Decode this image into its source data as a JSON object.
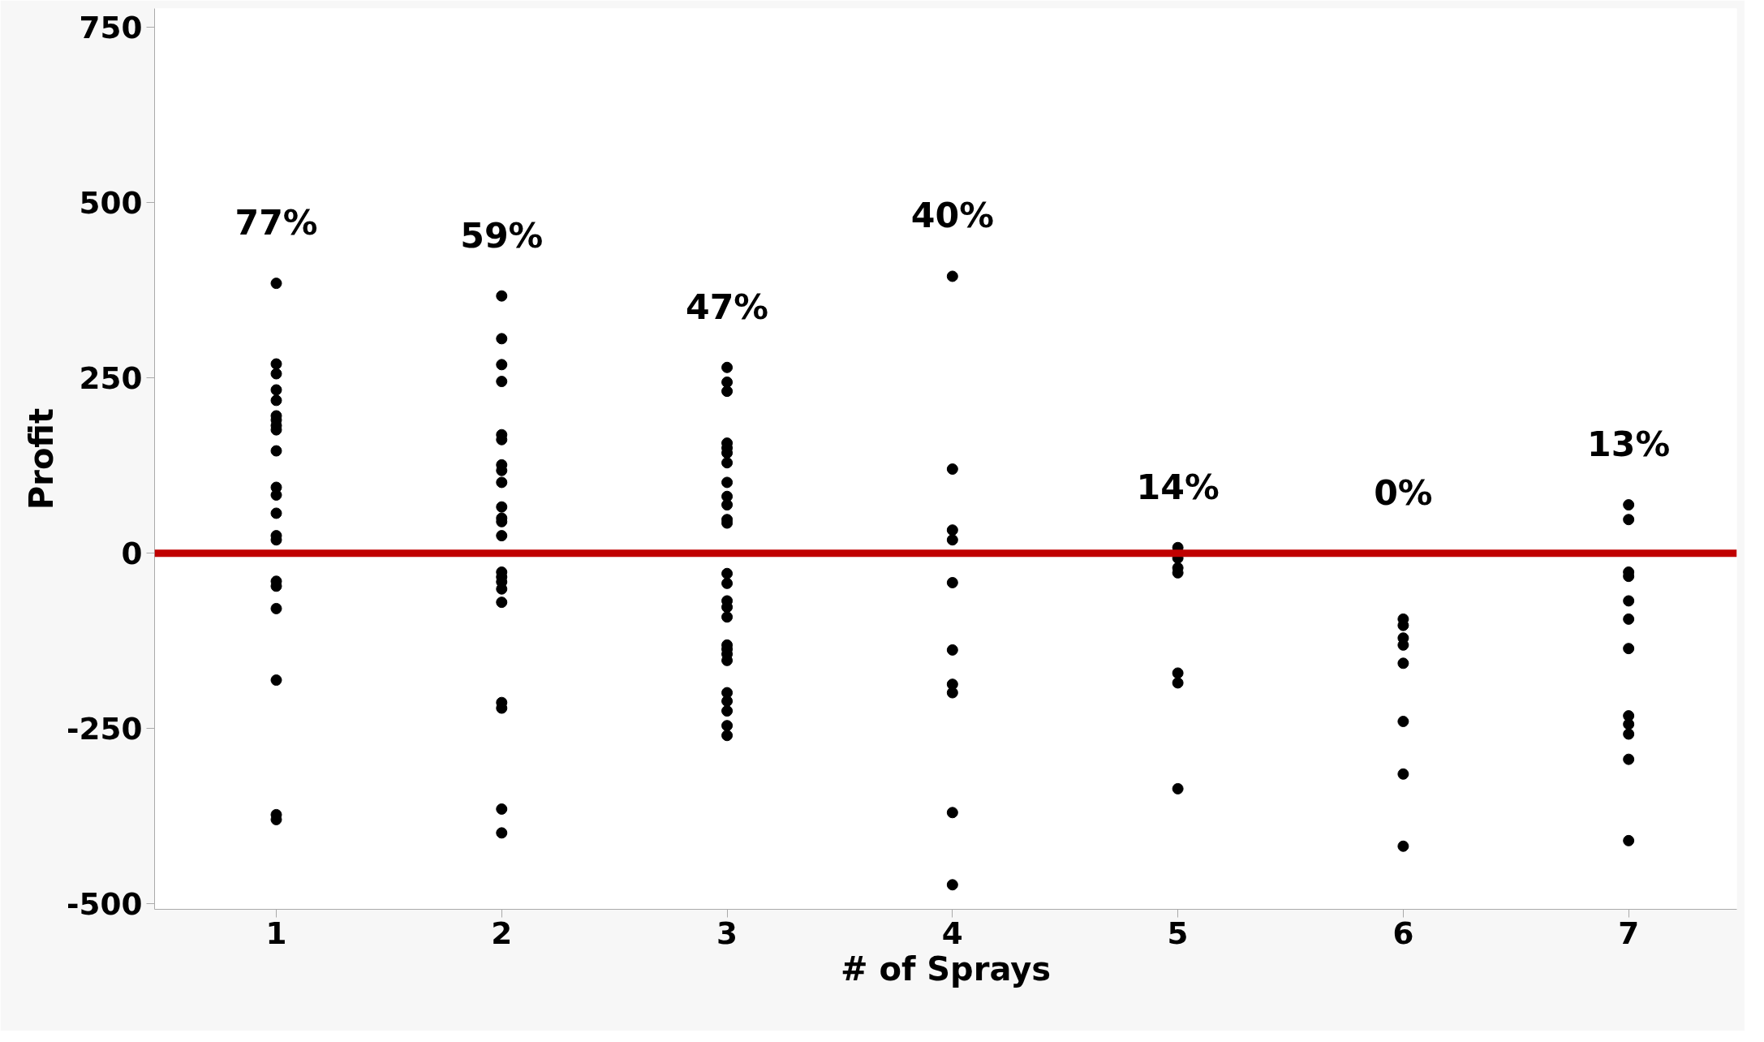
{
  "chart_data": {
    "type": "scatter",
    "xlabel": "# of Sprays",
    "ylabel": "Profit",
    "xlim": [
      0.46,
      7.48
    ],
    "xticks": [
      1,
      2,
      3,
      4,
      5,
      6,
      7
    ],
    "ylim": [
      -508,
      777
    ],
    "yticks": [
      {
        "value": -500,
        "label": "-500"
      },
      {
        "value": -250,
        "label": "-250"
      },
      0,
      250,
      500,
      750
    ],
    "grid": false,
    "marker": "circle",
    "series": [
      {
        "color": "#000000",
        "x": [
          1,
          1,
          1,
          1,
          1,
          1,
          1,
          1,
          1,
          1,
          1,
          1,
          1,
          1,
          1,
          1,
          1,
          1,
          1,
          1,
          1,
          2,
          2,
          2,
          2,
          2,
          2,
          2,
          2,
          2,
          2,
          2,
          2,
          2,
          2,
          2,
          2,
          2,
          2,
          2,
          2,
          2,
          2,
          3,
          3,
          3,
          3,
          3,
          3,
          3,
          3,
          3,
          3,
          3,
          3,
          3,
          3,
          3,
          3,
          3,
          3,
          3,
          3,
          3,
          3,
          3,
          3,
          3,
          3,
          4,
          4,
          4,
          4,
          4,
          4,
          4,
          4,
          4,
          4,
          5,
          5,
          5,
          5,
          5,
          5,
          5,
          6,
          6,
          6,
          6,
          6,
          6,
          6,
          6,
          7,
          7,
          7,
          7,
          7,
          7,
          7,
          7,
          7,
          7,
          7,
          7
        ],
        "values": [
          385,
          270,
          256,
          233,
          218,
          196,
          190,
          182,
          176,
          146,
          94,
          83,
          57,
          25,
          19,
          -40,
          -47,
          -79,
          -181,
          -373,
          -380,
          367,
          306,
          269,
          245,
          169,
          162,
          126,
          118,
          101,
          66,
          50,
          45,
          25,
          -27,
          -34,
          -41,
          -51,
          -70,
          -213,
          -221,
          -365,
          -399,
          265,
          244,
          231,
          157,
          150,
          143,
          129,
          101,
          81,
          69,
          48,
          43,
          -29,
          -43,
          -68,
          -77,
          -91,
          -131,
          -137,
          -144,
          -153,
          -199,
          -211,
          -225,
          -246,
          -260,
          395,
          120,
          33,
          19,
          -42,
          -138,
          -187,
          -199,
          -370,
          -473,
          8,
          -7,
          -21,
          -28,
          -171,
          -185,
          -336,
          -94,
          -103,
          -121,
          -131,
          -157,
          -240,
          -315,
          -418,
          69,
          48,
          -27,
          -33,
          -68,
          -94,
          -136,
          -232,
          -244,
          -258,
          -294,
          -410
        ]
      }
    ],
    "ref_lines": [
      {
        "axis": "y",
        "value": 0,
        "color": "#c00000"
      }
    ],
    "annotations": [
      "77%",
      "59%",
      "47%",
      "40%",
      "14%",
      "0%",
      "13%"
    ]
  }
}
